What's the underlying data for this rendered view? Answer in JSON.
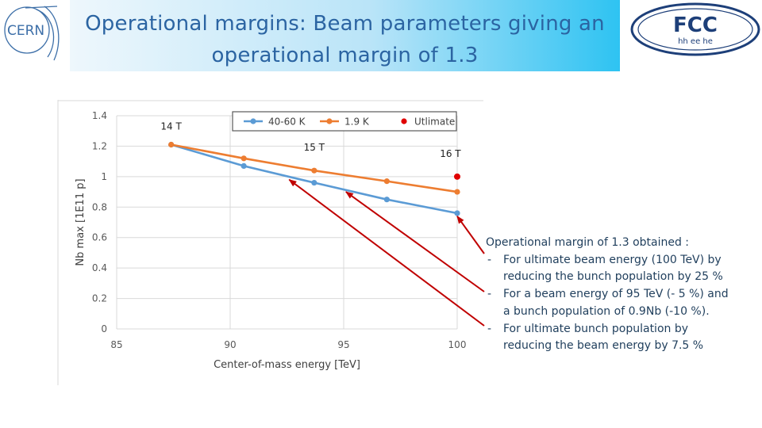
{
  "title": {
    "line1": "Operational margins: Beam parameters giving an",
    "line2": "operational margin of 1.3"
  },
  "logos": {
    "cern_text": "CERN",
    "fcc_text": "FCC",
    "fcc_subtext": "hh ee he"
  },
  "colors": {
    "title": "#2b64a2",
    "series_4060k": "#5b9bd5",
    "series_19k": "#ed7d31",
    "ultimate": "#e00000",
    "arrows": "#c00000"
  },
  "chart_data": {
    "type": "line",
    "title": "",
    "xlabel": "Center-of-mass energy [TeV]",
    "ylabel": "Nb max [1E11 p]",
    "xlim": [
      85,
      100
    ],
    "ylim": [
      0,
      1.4
    ],
    "x_ticks": [
      85,
      90,
      95,
      100
    ],
    "y_ticks": [
      0,
      0.2,
      0.4,
      0.6,
      0.8,
      1,
      1.2,
      1.4
    ],
    "y_tick_labels": [
      "0",
      "0.2",
      "0.4",
      "0.6",
      "0.8",
      "1",
      "1.2",
      "1.4"
    ],
    "grid": true,
    "legend_position": "top",
    "series": [
      {
        "name": "40-60 K",
        "color": "#5b9bd5",
        "marker": "circle",
        "x": [
          87.4,
          90.6,
          93.7,
          96.9,
          100
        ],
        "y": [
          1.21,
          1.07,
          0.96,
          0.85,
          0.76
        ]
      },
      {
        "name": "1.9 K",
        "color": "#ed7d31",
        "marker": "circle",
        "x": [
          87.4,
          90.6,
          93.7,
          96.9,
          100
        ],
        "y": [
          1.21,
          1.12,
          1.04,
          0.97,
          0.9
        ]
      },
      {
        "name": "Utlimate",
        "color": "#e00000",
        "marker": "dot",
        "x": [
          100
        ],
        "y": [
          1.0
        ]
      }
    ],
    "annotations": [
      {
        "text": "14 T",
        "x": 87.4,
        "y": 1.31
      },
      {
        "text": "15 T",
        "x": 93.7,
        "y": 1.17
      },
      {
        "text": "16 T",
        "x": 99.7,
        "y": 1.13
      }
    ],
    "arrows": [
      {
        "to_x": 100,
        "to_y": 0.74
      },
      {
        "to_x": 95.1,
        "to_y": 0.9
      },
      {
        "to_x": 92.6,
        "to_y": 0.98
      }
    ]
  },
  "notes": {
    "heading": "Operational margin of 1.3 obtained :",
    "items": [
      {
        "dash": "-",
        "line1": "For ultimate beam energy (100 TeV) by",
        "line2": "reducing the bunch population by 25 %"
      },
      {
        "dash": "-",
        "line1": "For a beam energy of 95 TeV (- 5 %) and",
        "line2": "a bunch population of 0.9Nb (-10 %)."
      },
      {
        "dash": "-",
        "line1": "For ultimate bunch population by",
        "line2": "reducing the beam energy by 7.5 %"
      }
    ]
  }
}
